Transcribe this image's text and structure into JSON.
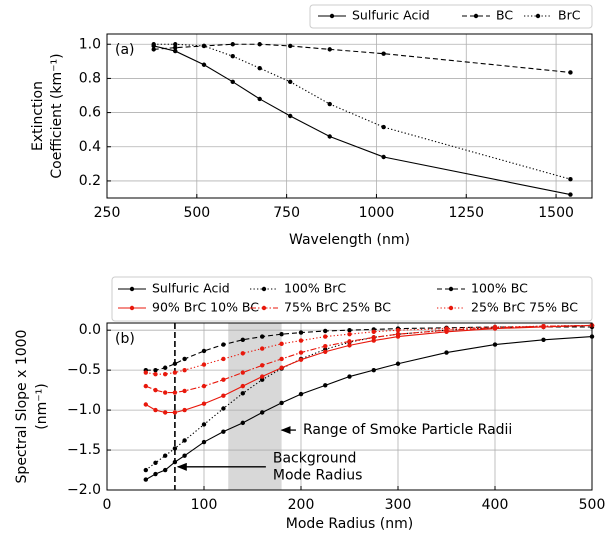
{
  "chart_data": [
    {
      "type": "line",
      "panel_label": "(a)",
      "xlabel": "Wavelength (nm)",
      "ylabel": [
        "Extinction",
        "Coefficient (km⁻¹)"
      ],
      "x": [
        380,
        440,
        520,
        600,
        675,
        760,
        870,
        1020,
        1540
      ],
      "xlim": [
        250,
        1600
      ],
      "xticks": [
        250,
        500,
        750,
        1000,
        1250,
        1500
      ],
      "ylim": [
        0.1,
        1.06
      ],
      "yticks": [
        0.2,
        0.4,
        0.6,
        0.8,
        {
          "value": 1.0,
          "label": "1.0"
        }
      ],
      "grid": true,
      "series": [
        {
          "name": "Sulfuric Acid",
          "color": "#000000",
          "linestyle": "solid",
          "values": [
            0.99,
            0.96,
            0.88,
            0.78,
            0.68,
            0.58,
            0.46,
            0.34,
            0.12
          ]
        },
        {
          "name": "BC",
          "color": "#000000",
          "linestyle": "dashed",
          "values": [
            0.97,
            0.98,
            0.99,
            1.0,
            1.0,
            0.99,
            0.97,
            0.945,
            0.835
          ]
        },
        {
          "name": "BrC",
          "color": "#000000",
          "linestyle": "dotted",
          "values": [
            1.0,
            1.0,
            0.99,
            0.93,
            0.86,
            0.78,
            0.65,
            0.515,
            0.21
          ]
        }
      ]
    },
    {
      "type": "line",
      "panel_label": "(b)",
      "xlabel": "Mode Radius (nm)",
      "ylabel": [
        "Spectral Slope x 1000",
        "(nm⁻¹)"
      ],
      "x": [
        40,
        50,
        60,
        70,
        80,
        100,
        120,
        140,
        160,
        180,
        200,
        225,
        250,
        275,
        300,
        350,
        400,
        450,
        500
      ],
      "xlim": [
        0,
        500
      ],
      "xticks": [
        0,
        100,
        200,
        300,
        400,
        500
      ],
      "ylim": [
        -2.0,
        0.09
      ],
      "yticks": [
        {
          "value": -2.0,
          "label": "−2.0"
        },
        {
          "value": -1.5,
          "label": "−1.5"
        },
        {
          "value": -1.0,
          "label": "−1.0"
        },
        {
          "value": -0.5,
          "label": "−0.5"
        },
        {
          "value": 0.0,
          "label": "0.0"
        }
      ],
      "grid": true,
      "span": [
        125,
        180
      ],
      "vline": 70,
      "annotations": [
        {
          "text": [
            "Range of Smoke Particle Radii"
          ],
          "xy": [
            180,
            -1.25
          ],
          "xytext": [
            202,
            -1.25
          ]
        },
        {
          "text": [
            "Background",
            "Mode Radius"
          ],
          "xy": [
            73,
            -1.71
          ],
          "xytext": [
            171,
            -1.71
          ]
        }
      ],
      "series": [
        {
          "name": "Sulfuric Acid",
          "color": "#000000",
          "linestyle": "solid",
          "values": [
            -1.87,
            -1.8,
            -1.75,
            -1.65,
            -1.57,
            -1.4,
            -1.27,
            -1.16,
            -1.03,
            -0.91,
            -0.8,
            -0.69,
            -0.58,
            -0.5,
            -0.42,
            -0.28,
            -0.18,
            -0.12,
            -0.08
          ]
        },
        {
          "name": "100% BrC",
          "color": "#000000",
          "linestyle": "dotted",
          "values": [
            -1.75,
            -1.66,
            -1.57,
            -1.48,
            -1.38,
            -1.18,
            -0.98,
            -0.79,
            -0.62,
            -0.48,
            -0.36,
            -0.24,
            -0.15,
            -0.09,
            -0.05,
            0.0,
            0.03,
            0.05,
            0.06
          ]
        },
        {
          "name": "100% BC",
          "color": "#000000",
          "linestyle": "dashed",
          "values": [
            -0.5,
            -0.5,
            -0.47,
            -0.42,
            -0.36,
            -0.26,
            -0.18,
            -0.12,
            -0.08,
            -0.05,
            -0.03,
            -0.01,
            0.0,
            0.01,
            0.02,
            0.03,
            0.04,
            0.04,
            0.04
          ]
        },
        {
          "name": "90% BrC 10% BC",
          "color": "#e8180c",
          "linestyle": "solid",
          "values": [
            -0.93,
            -1.0,
            -1.03,
            -1.03,
            -1.0,
            -0.92,
            -0.82,
            -0.7,
            -0.58,
            -0.47,
            -0.37,
            -0.27,
            -0.19,
            -0.13,
            -0.08,
            -0.02,
            0.02,
            0.04,
            0.06
          ]
        },
        {
          "name": "75% BrC 25% BC",
          "color": "#e8180c",
          "linestyle": "dashdot",
          "values": [
            -0.7,
            -0.75,
            -0.78,
            -0.78,
            -0.76,
            -0.7,
            -0.62,
            -0.53,
            -0.44,
            -0.36,
            -0.28,
            -0.2,
            -0.14,
            -0.09,
            -0.05,
            0.0,
            0.03,
            0.05,
            0.06
          ]
        },
        {
          "name": "25% BrC 75% BC",
          "color": "#e8180c",
          "linestyle": "dotted",
          "values": [
            -0.53,
            -0.55,
            -0.55,
            -0.53,
            -0.5,
            -0.43,
            -0.36,
            -0.29,
            -0.23,
            -0.17,
            -0.13,
            -0.08,
            -0.05,
            -0.02,
            0.0,
            0.02,
            0.04,
            0.05,
            0.06
          ]
        }
      ]
    }
  ]
}
